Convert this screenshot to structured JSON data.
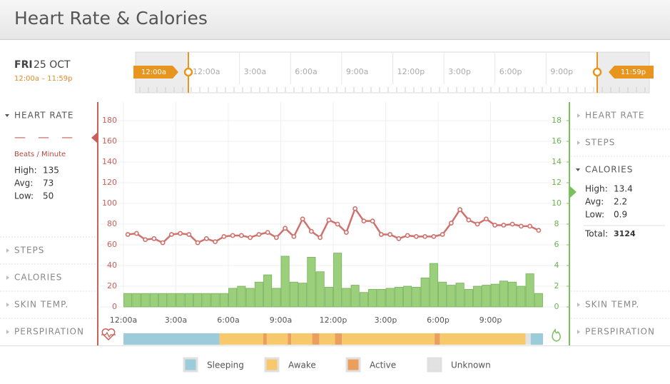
{
  "header": {
    "title": "Heart Rate & Calories"
  },
  "date": {
    "day": "FRI",
    "date": "25 OCT",
    "range": "12:00a – 11:59p"
  },
  "timeline": {
    "labels": [
      "12:00a",
      "3:00a",
      "6:00a",
      "9:00a",
      "12:00p",
      "3:00p",
      "6:00p",
      "9:00p"
    ],
    "start_label": "12:00a",
    "end_label": "11:59p"
  },
  "left_panel": {
    "sections": [
      "HEART RATE",
      "STEPS",
      "CALORIES",
      "SKIN TEMP.",
      "PERSPIRATION"
    ],
    "placeholder": "— — —",
    "unit": "Beats / Minute",
    "stats": [
      {
        "label": "High:",
        "value": 135
      },
      {
        "label": "Avg:",
        "value": 73
      },
      {
        "label": "Low:",
        "value": 50
      }
    ]
  },
  "right_panel": {
    "sections": [
      "HEART RATE",
      "STEPS",
      "CALORIES",
      "SKIN TEMP.",
      "PERSPIRATION"
    ],
    "stats": [
      {
        "label": "High:",
        "value": 13.4
      },
      {
        "label": "Avg:",
        "value": 2.2
      },
      {
        "label": "Low:",
        "value": 0.9
      }
    ],
    "total": {
      "label": "Total:",
      "value": 3124
    }
  },
  "chart_data": {
    "type": "combo",
    "x": [
      0,
      0.5,
      1,
      1.5,
      2,
      2.5,
      3,
      3.5,
      4,
      4.5,
      5,
      5.5,
      6,
      6.5,
      7,
      7.5,
      8,
      8.5,
      9,
      9.5,
      10,
      10.5,
      11,
      11.5,
      12,
      12.5,
      13,
      13.5,
      14,
      14.5,
      15,
      15.5,
      16,
      16.5,
      17,
      17.5,
      18,
      18.5,
      19,
      19.5,
      20,
      20.5,
      21,
      21.5,
      22,
      22.5,
      23,
      23.5
    ],
    "xlim": [
      0,
      24
    ],
    "xticks": [
      {
        "value": 0,
        "label": "12:00a"
      },
      {
        "value": 3,
        "label": "3:00a"
      },
      {
        "value": 6,
        "label": "6:00a"
      },
      {
        "value": 9,
        "label": "9:00a"
      },
      {
        "value": 12,
        "label": "12:00p"
      },
      {
        "value": 15,
        "label": "3:00p"
      },
      {
        "value": 18,
        "label": "6:00p"
      },
      {
        "value": 21,
        "label": "9:00p"
      }
    ],
    "ylim": [
      0,
      200
    ],
    "yticks": [
      0,
      20,
      40,
      60,
      80,
      100,
      120,
      140,
      160,
      180
    ],
    "y2lim": [
      0,
      20
    ],
    "y2ticks": [
      0,
      2,
      4,
      6,
      8,
      10,
      12,
      14,
      16,
      18
    ],
    "grid": true,
    "series": [
      {
        "color": "#d0716d",
        "values": [
          70,
          71,
          65,
          66,
          62,
          70,
          71,
          70,
          62,
          66,
          63,
          68,
          69,
          69,
          67,
          70,
          72,
          67,
          76,
          68,
          85,
          73,
          67,
          84,
          80,
          72,
          95,
          83,
          83,
          70,
          70,
          66,
          69,
          68,
          68,
          68,
          70,
          81,
          94,
          84,
          80,
          85,
          79,
          79,
          80,
          78,
          78,
          74
        ]
      },
      {
        "color": "#9ccf7c",
        "axis": "y2",
        "values": [
          1.3,
          1.3,
          1.3,
          1.3,
          1.3,
          1.3,
          1.3,
          1.3,
          1.3,
          1.3,
          1.3,
          1.3,
          1.8,
          2.0,
          1.8,
          2.4,
          3.1,
          1.8,
          4.9,
          2.4,
          2.3,
          4.8,
          3.4,
          1.9,
          5.2,
          1.8,
          2.1,
          1.4,
          1.7,
          1.7,
          1.8,
          1.9,
          2.0,
          1.9,
          2.8,
          4.2,
          2.4,
          2.1,
          2.3,
          1.7,
          2.0,
          2.1,
          2.2,
          2.5,
          2.4,
          2.0,
          3.2,
          1.3
        ]
      }
    ]
  },
  "activity": {
    "segments": [
      {
        "state": "Sleeping",
        "start": 0,
        "end": 5.5
      },
      {
        "state": "Awake",
        "start": 5.5,
        "end": 8
      },
      {
        "state": "Active",
        "start": 8,
        "end": 8.2
      },
      {
        "state": "Awake",
        "start": 8.2,
        "end": 9.4
      },
      {
        "state": "Active",
        "start": 9.4,
        "end": 9.6
      },
      {
        "state": "Awake",
        "start": 9.6,
        "end": 10.8
      },
      {
        "state": "Active",
        "start": 10.8,
        "end": 11.2
      },
      {
        "state": "Awake",
        "start": 11.2,
        "end": 12.1
      },
      {
        "state": "Active",
        "start": 12.1,
        "end": 12.5
      },
      {
        "state": "Awake",
        "start": 12.5,
        "end": 17.8
      },
      {
        "state": "Active",
        "start": 17.8,
        "end": 18.1
      },
      {
        "state": "Awake",
        "start": 18.1,
        "end": 23
      },
      {
        "state": "Unknown",
        "start": 23,
        "end": 23.3
      },
      {
        "state": "Sleeping",
        "start": 23.3,
        "end": 24
      }
    ]
  },
  "legend": [
    {
      "label": "Sleeping",
      "color": "#9ccbd9"
    },
    {
      "label": "Awake",
      "color": "#f7c86c"
    },
    {
      "label": "Active",
      "color": "#eb9f5e"
    },
    {
      "label": "Unknown",
      "color": "#e2e2e2"
    }
  ]
}
